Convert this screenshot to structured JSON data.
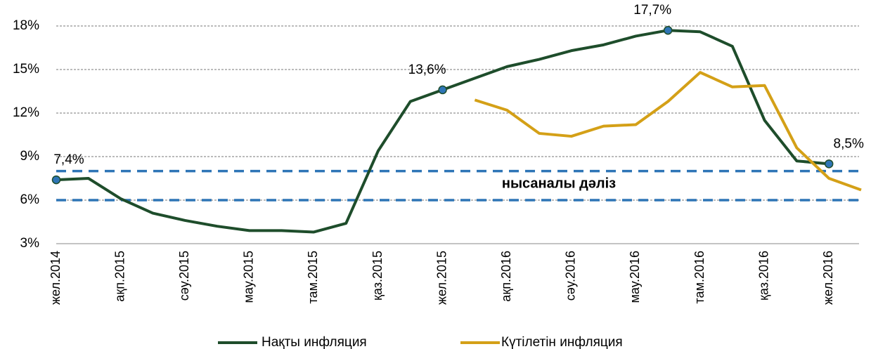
{
  "chart_data": {
    "type": "line",
    "categories": [
      "жел.2014",
      null,
      "ақп.2015",
      null,
      "сәу.2015",
      null,
      "мау.2015",
      null,
      "там.2015",
      null,
      "қаз.2015",
      null,
      "жел.2015",
      null,
      "ақп.2016",
      null,
      "сәу.2016",
      null,
      "мау.2016",
      null,
      "там.2016",
      null,
      "қаз.2016",
      null,
      "жел.2016",
      null
    ],
    "series": [
      {
        "name": "Нақты инфляция",
        "color": "#1e4d2b",
        "values": [
          7.4,
          7.5,
          6.1,
          5.1,
          4.6,
          4.2,
          3.9,
          3.9,
          3.8,
          4.4,
          9.4,
          12.8,
          13.6,
          14.4,
          15.2,
          15.7,
          16.3,
          16.7,
          17.3,
          17.7,
          17.6,
          16.6,
          11.5,
          8.7,
          8.5,
          null
        ],
        "value_labels": [
          "7,4%",
          null,
          null,
          null,
          null,
          null,
          null,
          null,
          null,
          null,
          null,
          null,
          "13,6%",
          null,
          null,
          null,
          null,
          null,
          null,
          "17,7%",
          null,
          null,
          null,
          null,
          "8,5%",
          null
        ]
      },
      {
        "name": "Күтілетін инфляция",
        "color": "#d4a017",
        "values": [
          null,
          null,
          null,
          null,
          null,
          null,
          null,
          null,
          null,
          null,
          null,
          null,
          null,
          12.9,
          12.2,
          10.6,
          10.4,
          11.1,
          11.2,
          12.8,
          14.8,
          13.8,
          13.9,
          9.6,
          7.5,
          6.7
        ]
      }
    ],
    "ylim": [
      3,
      18
    ],
    "yticks": [
      {
        "value": 3,
        "label": "3%"
      },
      {
        "value": 6,
        "label": "6%"
      },
      {
        "value": 9,
        "label": "9%"
      },
      {
        "value": 12,
        "label": "12%"
      },
      {
        "value": 15,
        "label": "15%"
      },
      {
        "value": 18,
        "label": "18%"
      }
    ],
    "grid": true,
    "reference_lines": [
      {
        "value": 6
      },
      {
        "value": 8
      }
    ],
    "reference_color": "#2e75b6",
    "reference_label": "нысаналы дәліз",
    "legend": "bottom"
  }
}
